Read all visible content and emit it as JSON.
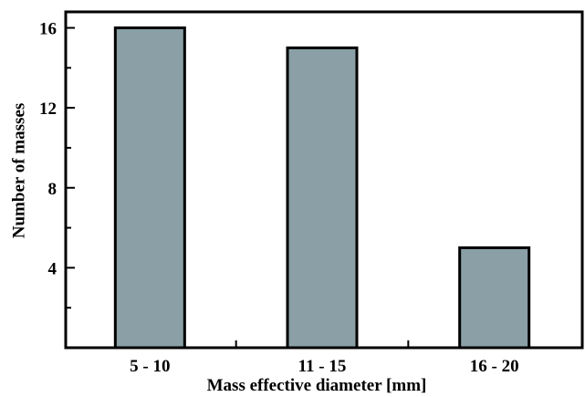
{
  "chart_data": {
    "type": "bar",
    "categories": [
      "5 - 10",
      "11 - 15",
      "16 - 20"
    ],
    "values": [
      16,
      15,
      5
    ],
    "xlabel": "Mass effective diameter [mm]",
    "ylabel": "Number of masses",
    "ylim": [
      0,
      16.8
    ],
    "yticks": [
      4,
      8,
      12,
      16
    ],
    "yticks_minor": [
      2,
      6,
      10,
      14
    ],
    "grid": false,
    "bar_color": "#8a9fa6",
    "edge_color": "#000000"
  }
}
